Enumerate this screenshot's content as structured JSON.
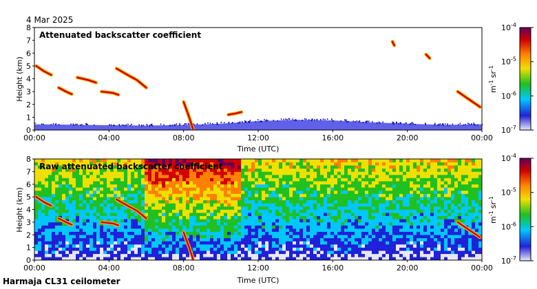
{
  "date_label": "4 Mar 2025",
  "footer_label": "Harmaja CL31 ceilometer",
  "colors": {
    "background": "#ffffff",
    "low_signal": "#3a3ae0",
    "high_signal": "#8b1a1a",
    "colormap": [
      "#e8e8f8",
      "#2020d8",
      "#00c8ff",
      "#20c020",
      "#f0e000",
      "#ff8000",
      "#d00000",
      "#600060"
    ]
  },
  "chart_data": [
    {
      "type": "heatmap",
      "title": "Attenuated backscatter coefficient",
      "xlabel": "Time (UTC)",
      "ylabel": "Height (km)",
      "x_ticks": [
        "00:00",
        "04:00",
        "08:00",
        "12:00",
        "16:00",
        "20:00",
        "00:00"
      ],
      "y_ticks": [
        "0",
        "1",
        "2",
        "3",
        "4",
        "5",
        "6",
        "7",
        "8"
      ],
      "xlim_hours": [
        0,
        24
      ],
      "ylim_km": [
        0,
        8
      ],
      "colorbar": {
        "unit_base": "m",
        "unit_exp": "-1",
        "unit_base2": "sr",
        "unit_exp2": "-1",
        "ticks": [
          {
            "base": "10",
            "exp": "-7",
            "value": 1e-07
          },
          {
            "base": "10",
            "exp": "-6",
            "value": 1e-06
          },
          {
            "base": "10",
            "exp": "-5",
            "value": 1e-05
          },
          {
            "base": "10",
            "exp": "-4",
            "value": 0.0001
          }
        ],
        "scale": "log"
      },
      "features": [
        {
          "kind": "boundary_layer",
          "start_h": 0,
          "end_h": 24,
          "top_km_series": [
            [
              0,
              0.45
            ],
            [
              3,
              0.4
            ],
            [
              6,
              0.35
            ],
            [
              8,
              0.4
            ],
            [
              10,
              0.5
            ],
            [
              12,
              0.7
            ],
            [
              14,
              0.8
            ],
            [
              16,
              0.75
            ],
            [
              18,
              0.6
            ],
            [
              20,
              0.5
            ],
            [
              22,
              0.4
            ],
            [
              24,
              0.45
            ]
          ]
        },
        {
          "kind": "cloud_layer",
          "points": [
            [
              0.1,
              5.0
            ],
            [
              0.5,
              4.6
            ],
            [
              0.9,
              4.3
            ]
          ]
        },
        {
          "kind": "cloud_layer",
          "points": [
            [
              1.3,
              3.3
            ],
            [
              1.7,
              3.0
            ],
            [
              2.0,
              2.8
            ]
          ]
        },
        {
          "kind": "cloud_layer",
          "points": [
            [
              2.3,
              4.1
            ],
            [
              2.9,
              3.9
            ],
            [
              3.3,
              3.7
            ]
          ]
        },
        {
          "kind": "cloud_layer",
          "points": [
            [
              3.6,
              3.0
            ],
            [
              4.2,
              2.9
            ],
            [
              4.5,
              2.75
            ]
          ]
        },
        {
          "kind": "cloud_layer",
          "points": [
            [
              4.4,
              4.8
            ],
            [
              5.0,
              4.3
            ],
            [
              5.5,
              3.9
            ],
            [
              6.0,
              3.3
            ]
          ]
        },
        {
          "kind": "cloud_layer",
          "points": [
            [
              8.0,
              2.2
            ],
            [
              8.3,
              1.0
            ],
            [
              8.5,
              0.1
            ]
          ]
        },
        {
          "kind": "cloud_layer",
          "points": [
            [
              10.4,
              1.2
            ],
            [
              10.8,
              1.3
            ],
            [
              11.1,
              1.4
            ]
          ]
        },
        {
          "kind": "cloud_layer",
          "points": [
            [
              22.7,
              3.0
            ],
            [
              23.3,
              2.4
            ],
            [
              23.9,
              1.8
            ]
          ]
        },
        {
          "kind": "cloud_layer",
          "points": [
            [
              19.2,
              6.9
            ],
            [
              19.3,
              6.6
            ]
          ]
        },
        {
          "kind": "cloud_layer",
          "points": [
            [
              21.0,
              5.9
            ],
            [
              21.2,
              5.6
            ]
          ]
        }
      ]
    },
    {
      "type": "heatmap",
      "title": "Raw attenuated backscatter coefficient",
      "xlabel": "Time (UTC)",
      "ylabel": "Height (km)",
      "x_ticks": [
        "00:00",
        "04:00",
        "08:00",
        "12:00",
        "16:00",
        "20:00",
        "00:00"
      ],
      "y_ticks": [
        "0",
        "1",
        "2",
        "3",
        "4",
        "5",
        "6",
        "7",
        "8"
      ],
      "xlim_hours": [
        0,
        24
      ],
      "ylim_km": [
        0,
        8
      ],
      "colorbar": {
        "unit_base": "m",
        "unit_exp": "-1",
        "unit_base2": "sr",
        "unit_exp2": "-1",
        "ticks": [
          {
            "base": "10",
            "exp": "-7",
            "value": 1e-07
          },
          {
            "base": "10",
            "exp": "-6",
            "value": 1e-06
          },
          {
            "base": "10",
            "exp": "-5",
            "value": 1e-05
          },
          {
            "base": "10",
            "exp": "-4",
            "value": 0.0001
          }
        ],
        "scale": "log"
      },
      "features": [
        {
          "kind": "noise_field",
          "note_high_noise_hours": [
            6,
            11
          ]
        },
        {
          "kind": "cloud_layer",
          "points": [
            [
              0.1,
              5.0
            ],
            [
              0.5,
              4.6
            ],
            [
              0.9,
              4.3
            ]
          ]
        },
        {
          "kind": "cloud_layer",
          "points": [
            [
              1.3,
              3.3
            ],
            [
              1.7,
              3.0
            ],
            [
              2.0,
              2.8
            ]
          ]
        },
        {
          "kind": "cloud_layer",
          "points": [
            [
              3.6,
              3.0
            ],
            [
              4.2,
              2.9
            ],
            [
              4.5,
              2.75
            ]
          ]
        },
        {
          "kind": "cloud_layer",
          "points": [
            [
              4.4,
              4.8
            ],
            [
              5.0,
              4.3
            ],
            [
              5.5,
              3.9
            ],
            [
              6.0,
              3.3
            ]
          ]
        },
        {
          "kind": "cloud_layer",
          "points": [
            [
              8.0,
              2.2
            ],
            [
              8.3,
              1.0
            ],
            [
              8.5,
              0.1
            ]
          ]
        },
        {
          "kind": "cloud_layer",
          "points": [
            [
              22.7,
              3.0
            ],
            [
              23.3,
              2.4
            ],
            [
              23.9,
              1.8
            ]
          ]
        }
      ]
    }
  ]
}
